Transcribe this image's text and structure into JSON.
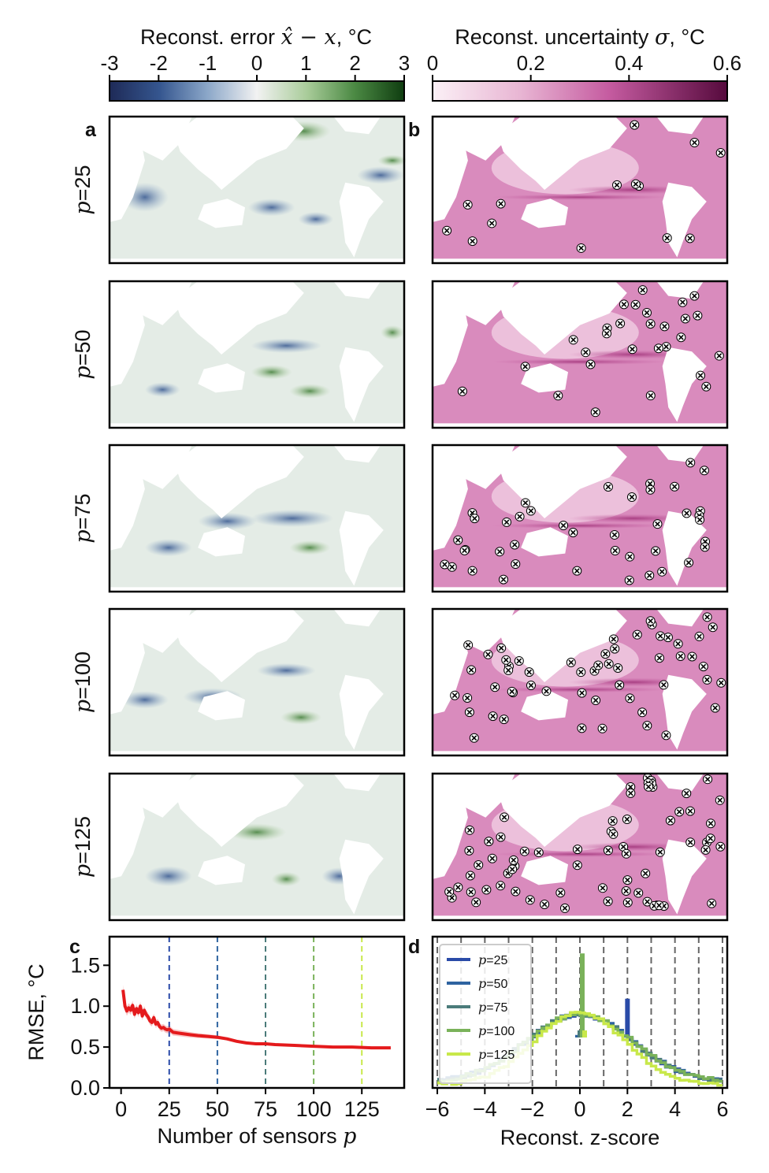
{
  "colorbars": {
    "error": {
      "title_prefix": "Reconst. error ",
      "title_math": "x̂ − x",
      "title_suffix": ", °C",
      "ticks": [
        "-3",
        "-2",
        "-1",
        "0",
        "1",
        "2",
        "3"
      ],
      "range": [
        -3,
        3
      ]
    },
    "uncertainty": {
      "title_prefix": "Reconst. uncertainty ",
      "title_math": "σ",
      "title_suffix": ", °C",
      "ticks": [
        "0",
        "0.2",
        "0.4",
        "0.6"
      ],
      "range": [
        0,
        0.6
      ]
    }
  },
  "panels": {
    "a": "a",
    "b": "b",
    "c": "c",
    "d": "d"
  },
  "rows": [
    {
      "p_symbol": "p",
      "p_text": "=25"
    },
    {
      "p_symbol": "p",
      "p_text": "=50"
    },
    {
      "p_symbol": "p",
      "p_text": "=75"
    },
    {
      "p_symbol": "p",
      "p_text": "=100"
    },
    {
      "p_symbol": "p",
      "p_text": "=125"
    }
  ],
  "chart_data": [
    {
      "type": "line",
      "panel": "c",
      "xlabel": "Number of sensors p",
      "xlabel_text": "Number of sensors ",
      "xlabel_math": "p",
      "ylabel": "RMSE, °C",
      "xlim": [
        -6,
        147
      ],
      "ylim": [
        0,
        1.85
      ],
      "x_ticks": [
        "0",
        "25",
        "50",
        "75",
        "100",
        "125"
      ],
      "y_ticks": [
        "0.0",
        "0.5",
        "1.0",
        "1.5"
      ],
      "vlines": [
        25,
        50,
        75,
        100,
        125
      ],
      "series": [
        {
          "name": "RMSE",
          "color": "#e41a1c",
          "x": [
            1,
            2,
            3,
            4,
            5,
            6,
            7,
            8,
            9,
            10,
            11,
            12,
            13,
            14,
            15,
            16,
            17,
            18,
            19,
            20,
            21,
            22,
            23,
            24,
            25,
            27,
            30,
            33,
            36,
            40,
            45,
            50,
            55,
            60,
            65,
            70,
            75,
            80,
            90,
            100,
            110,
            120,
            130,
            140
          ],
          "y": [
            1.2,
            1.0,
            0.94,
            0.98,
            0.95,
            1.01,
            0.9,
            0.97,
            0.92,
            1.0,
            0.88,
            0.95,
            0.9,
            0.87,
            0.82,
            0.8,
            0.86,
            0.78,
            0.8,
            0.75,
            0.73,
            0.74,
            0.72,
            0.71,
            0.72,
            0.68,
            0.67,
            0.66,
            0.65,
            0.64,
            0.63,
            0.62,
            0.6,
            0.57,
            0.55,
            0.54,
            0.54,
            0.53,
            0.52,
            0.51,
            0.5,
            0.5,
            0.49,
            0.49
          ]
        }
      ]
    },
    {
      "type": "bar",
      "panel": "d",
      "xlabel": "Reconst. z-score",
      "xlim": [
        -6.2,
        6.2
      ],
      "x_ticks": [
        "−6",
        "−4",
        "−2",
        "0",
        "2",
        "4",
        "6"
      ],
      "vlines": [
        -6,
        -5,
        -4,
        -3,
        -2,
        -1,
        0,
        1,
        2,
        3,
        4,
        5,
        6
      ],
      "legend": "top-left",
      "series": [
        {
          "name": "p=25",
          "legend_math": "p",
          "legend_text": "=25",
          "color": "#2a4ba8",
          "spike_at": 2.2,
          "spike_height": 0.95
        },
        {
          "name": "p=50",
          "legend_math": "p",
          "legend_text": "=50",
          "color": "#2e63a0",
          "spike_at": 0.0,
          "spike_height": 0.55
        },
        {
          "name": "p=75",
          "legend_math": "p",
          "legend_text": "=75",
          "color": "#4b7b7a",
          "spike_at": 0.0,
          "spike_height": 0.6
        },
        {
          "name": "p=100",
          "legend_math": "p",
          "legend_text": "=100",
          "color": "#7ab25a",
          "spike_at": 0.0,
          "spike_height": 1.45
        },
        {
          "name": "p=125",
          "legend_math": "p",
          "legend_text": "=125",
          "color": "#c8e84a",
          "spike_at": 0.0,
          "spike_height": 0.6
        }
      ]
    }
  ]
}
